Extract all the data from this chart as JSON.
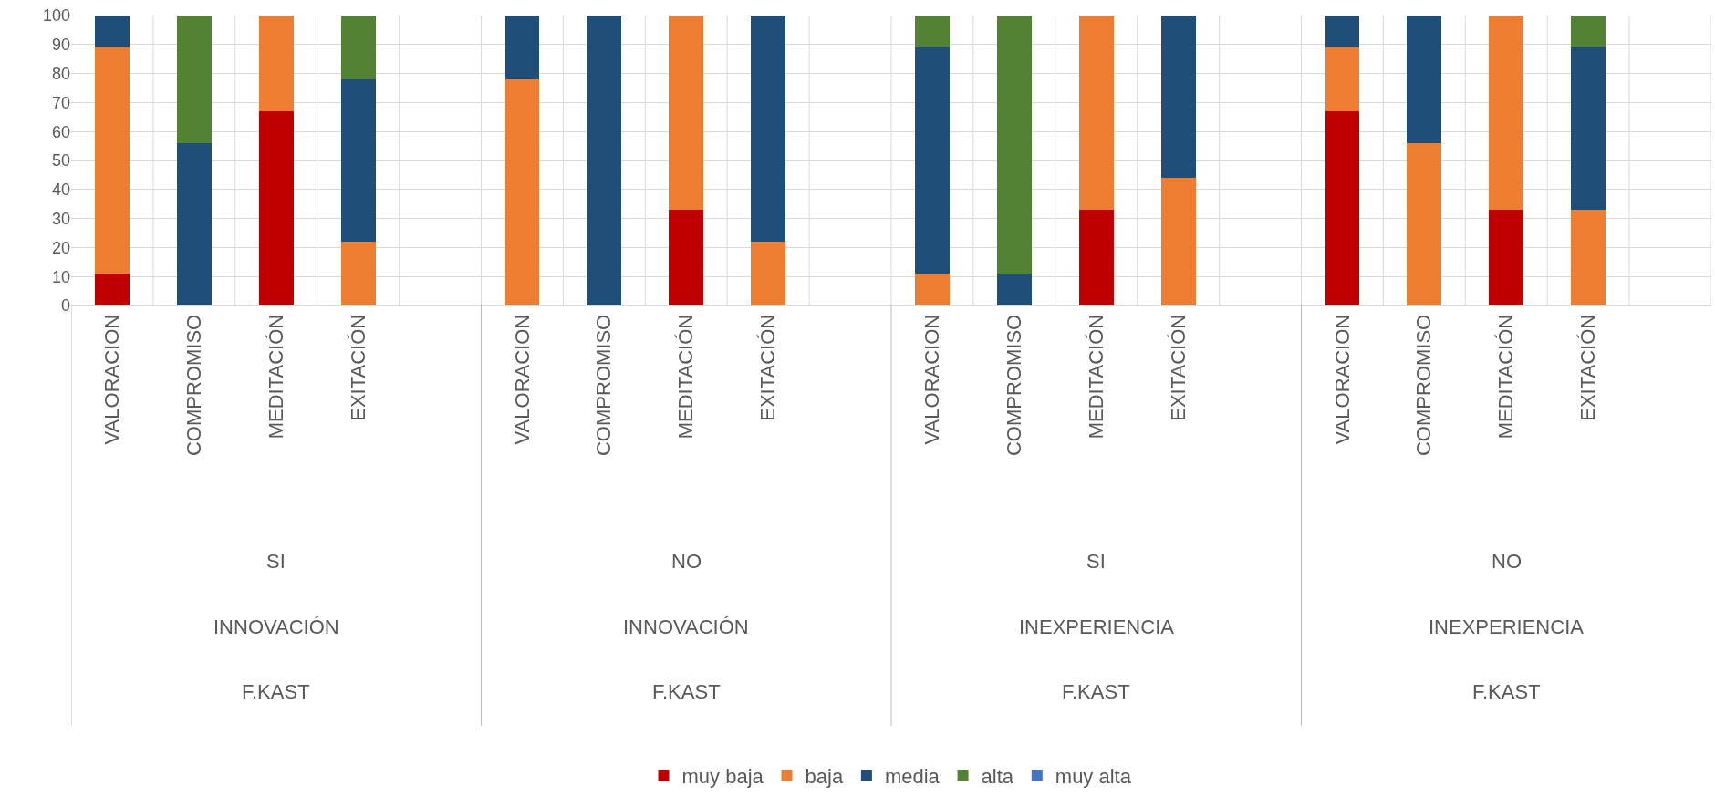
{
  "chart_data": {
    "type": "bar",
    "stacked": true,
    "categories": [
      "VALORACION",
      "COMPROMISO",
      "MEDITACIÓN",
      "EXITACIÓN",
      null,
      "VALORACION",
      "COMPROMISO",
      "MEDITACIÓN",
      "EXITACIÓN",
      null,
      "VALORACION",
      "COMPROMISO",
      "MEDITACIÓN",
      "EXITACIÓN",
      null,
      "VALORACION",
      "COMPROMISO",
      "MEDITACIÓN",
      "EXITACIÓN",
      null
    ],
    "series": [
      {
        "name": "muy baja",
        "color": "#c00000",
        "values": [
          11,
          null,
          67,
          null,
          null,
          null,
          null,
          33,
          null,
          null,
          null,
          null,
          33,
          null,
          null,
          67,
          null,
          33,
          null,
          null
        ]
      },
      {
        "name": "baja",
        "color": "#ed7d31",
        "values": [
          78,
          null,
          33,
          22,
          null,
          78,
          null,
          67,
          22,
          null,
          11,
          null,
          67,
          44,
          null,
          22,
          56,
          67,
          33,
          null
        ]
      },
      {
        "name": "media",
        "color": "#1f4e79",
        "values": [
          11,
          56,
          null,
          56,
          null,
          22,
          100,
          null,
          78,
          null,
          78,
          11,
          null,
          56,
          null,
          11,
          44,
          null,
          56,
          null
        ]
      },
      {
        "name": "alta",
        "color": "#548235",
        "values": [
          null,
          44,
          null,
          22,
          null,
          null,
          null,
          null,
          null,
          null,
          11,
          89,
          null,
          null,
          null,
          null,
          null,
          null,
          11,
          null
        ]
      },
      {
        "name": "muy alta",
        "color": "#4472c4",
        "values": [
          null,
          null,
          null,
          null,
          null,
          null,
          null,
          null,
          null,
          null,
          null,
          null,
          null,
          null,
          null,
          null,
          null,
          null,
          null,
          null
        ]
      }
    ],
    "annotations": [
      "SI",
      "INNOVACIÓN",
      "F.KAST",
      "NO",
      "INNOVACIÓN",
      "F.KAST",
      "SI",
      "INEXPERIENCIA",
      "F.KAST",
      "NO",
      "INEXPERIENCIA",
      "F.KAST"
    ],
    "ylim": [
      0,
      100
    ],
    "yticks": [
      0,
      10,
      20,
      30,
      40,
      50,
      60,
      70,
      80,
      90,
      100
    ],
    "grid": true,
    "legend": "bottom"
  }
}
